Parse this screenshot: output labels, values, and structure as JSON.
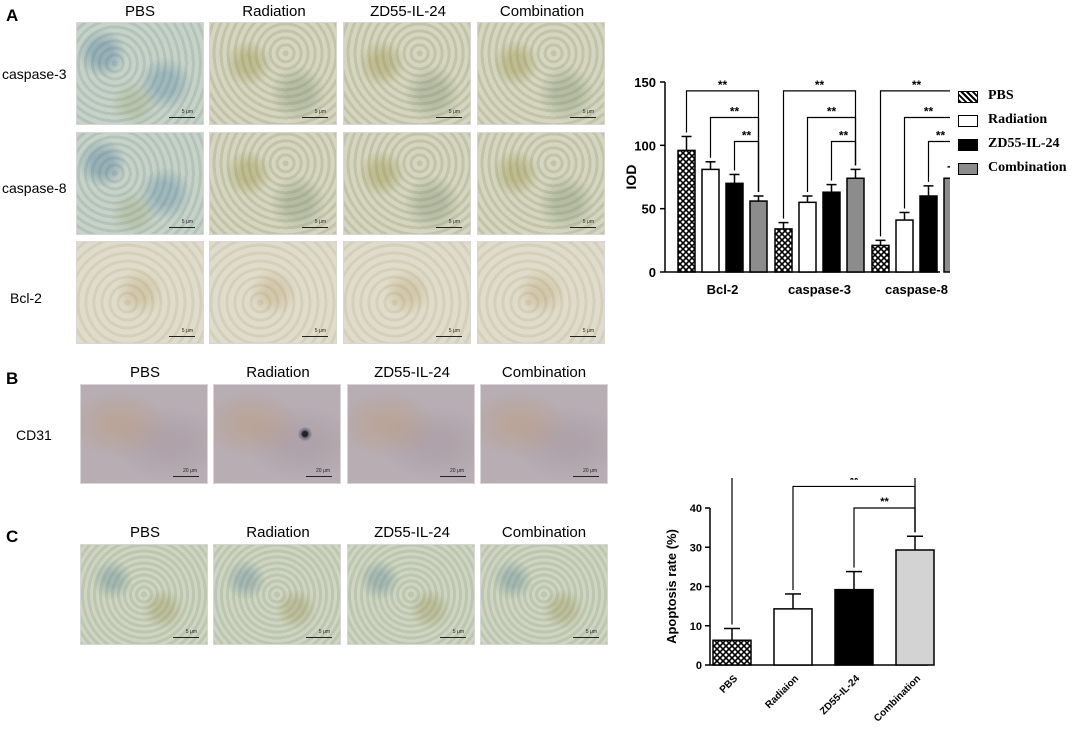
{
  "panels": {
    "a": {
      "letter": "A",
      "columns": [
        "PBS",
        "Radiation",
        "ZD55-IL-24",
        "Combination"
      ],
      "rows": [
        "caspase-3",
        "caspase-8",
        "Bcl-2"
      ]
    },
    "b": {
      "letter": "B",
      "columns": [
        "PBS",
        "Radiation",
        "ZD55-IL-24",
        "Combination"
      ],
      "rows": [
        "CD31"
      ]
    },
    "c": {
      "letter": "C",
      "columns": [
        "PBS",
        "Radiation",
        "ZD55-IL-24",
        "Combination"
      ]
    }
  },
  "scalebar_text": "5 μm",
  "cd31_scalebar_text": "20 μm",
  "legend": [
    "PBS",
    "Radiation",
    "ZD55-IL-24",
    "Combination"
  ],
  "chart_data": [
    {
      "type": "bar",
      "ylabel": "IOD",
      "ylim": [
        0,
        150
      ],
      "yticks": [
        0,
        50,
        100,
        150
      ],
      "categories": [
        "Bcl-2",
        "caspase-3",
        "caspase-8"
      ],
      "series": [
        {
          "name": "PBS",
          "values": [
            96,
            34,
            21
          ],
          "errors": [
            11,
            5,
            4
          ]
        },
        {
          "name": "Radiation",
          "values": [
            81,
            55,
            41
          ],
          "errors": [
            6,
            5,
            6
          ]
        },
        {
          "name": "ZD55-IL-24",
          "values": [
            70,
            63,
            60
          ],
          "errors": [
            7,
            6,
            8
          ]
        },
        {
          "name": "Combination",
          "values": [
            56,
            74,
            74
          ],
          "errors": [
            4,
            7,
            9
          ]
        }
      ],
      "significance": "**"
    },
    {
      "type": "bar",
      "ylabel": "Apoptosis rate (%)",
      "ylim": [
        0,
        40
      ],
      "yticks": [
        0,
        10,
        20,
        30,
        40
      ],
      "categories": [
        "PBS",
        "Radiaion",
        "ZD55-IL-24",
        "Combination"
      ],
      "values": [
        6.3,
        14.3,
        19.2,
        29.3
      ],
      "errors": [
        3,
        3.8,
        4.6,
        3.5
      ],
      "significance": "**"
    }
  ],
  "colors": {
    "pbs": "#ffffff",
    "radiation": "#ffffff",
    "zd55": "#000000",
    "combination": "#8c8c8c",
    "apop_combination": "#d3d3d3"
  }
}
